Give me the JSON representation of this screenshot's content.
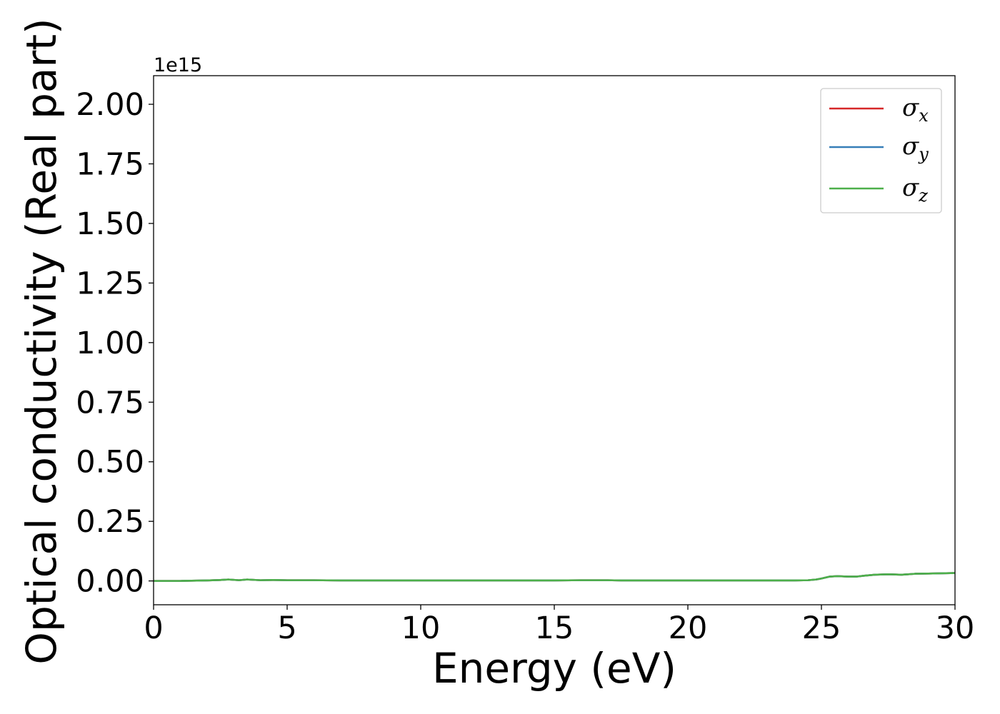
{
  "chart_data": {
    "type": "line",
    "title": "",
    "xlabel": "Energy (eV)",
    "ylabel": "Optical conductivity (Real part)",
    "y_offset_label": "1e15",
    "xlim": [
      0,
      30
    ],
    "ylim": [
      -0.1,
      2.12
    ],
    "y_scale_exponent": 15,
    "x_ticks": [
      0,
      5,
      10,
      15,
      20,
      25,
      30
    ],
    "x_tick_labels": [
      "0",
      "5",
      "10",
      "15",
      "20",
      "25",
      "30"
    ],
    "y_ticks": [
      0.0,
      0.25,
      0.5,
      0.75,
      1.0,
      1.25,
      1.5,
      1.75,
      2.0
    ],
    "y_tick_labels": [
      "0.00",
      "0.25",
      "0.50",
      "0.75",
      "1.00",
      "1.25",
      "1.50",
      "1.75",
      "2.00"
    ],
    "grid": false,
    "legend_position": "top-right",
    "x": [
      0,
      1,
      2,
      2.5,
      2.8,
      3.2,
      3.5,
      4,
      4.5,
      5,
      6,
      7,
      8,
      10,
      12,
      14,
      15,
      16,
      17,
      17.5,
      18,
      20,
      22,
      24,
      24.5,
      24.8,
      25,
      25.3,
      25.6,
      26,
      26.3,
      26.6,
      27,
      27.5,
      28,
      28.5,
      29,
      29.5,
      30
    ],
    "series": [
      {
        "name": "σx",
        "symbol": "σ",
        "subscript": "x",
        "color": "#d62728",
        "values": [
          0.0,
          0.0,
          0.002,
          0.004,
          0.006,
          0.003,
          0.006,
          0.003,
          0.004,
          0.003,
          0.003,
          0.002,
          0.002,
          0.002,
          0.002,
          0.002,
          0.002,
          0.003,
          0.003,
          0.002,
          0.002,
          0.002,
          0.002,
          0.002,
          0.003,
          0.006,
          0.01,
          0.018,
          0.02,
          0.018,
          0.018,
          0.022,
          0.026,
          0.028,
          0.026,
          0.03,
          0.031,
          0.032,
          0.033
        ]
      },
      {
        "name": "σy",
        "symbol": "σ",
        "subscript": "y",
        "color": "#377eb8",
        "values": [
          0.0,
          0.0,
          0.002,
          0.004,
          0.006,
          0.003,
          0.006,
          0.003,
          0.004,
          0.003,
          0.003,
          0.002,
          0.002,
          0.002,
          0.002,
          0.002,
          0.002,
          0.003,
          0.003,
          0.002,
          0.002,
          0.002,
          0.002,
          0.002,
          0.003,
          0.006,
          0.01,
          0.018,
          0.02,
          0.018,
          0.018,
          0.022,
          0.026,
          0.028,
          0.026,
          0.03,
          0.031,
          0.032,
          0.033
        ]
      },
      {
        "name": "σz",
        "symbol": "σ",
        "subscript": "z",
        "color": "#4daf4a",
        "values": [
          0.0,
          0.0,
          0.002,
          0.004,
          0.006,
          0.003,
          0.006,
          0.003,
          0.004,
          0.003,
          0.003,
          0.002,
          0.002,
          0.002,
          0.002,
          0.002,
          0.002,
          0.003,
          0.003,
          0.002,
          0.002,
          0.002,
          0.002,
          0.002,
          0.003,
          0.006,
          0.01,
          0.018,
          0.02,
          0.018,
          0.018,
          0.022,
          0.026,
          0.028,
          0.026,
          0.03,
          0.031,
          0.032,
          0.033
        ]
      }
    ]
  }
}
